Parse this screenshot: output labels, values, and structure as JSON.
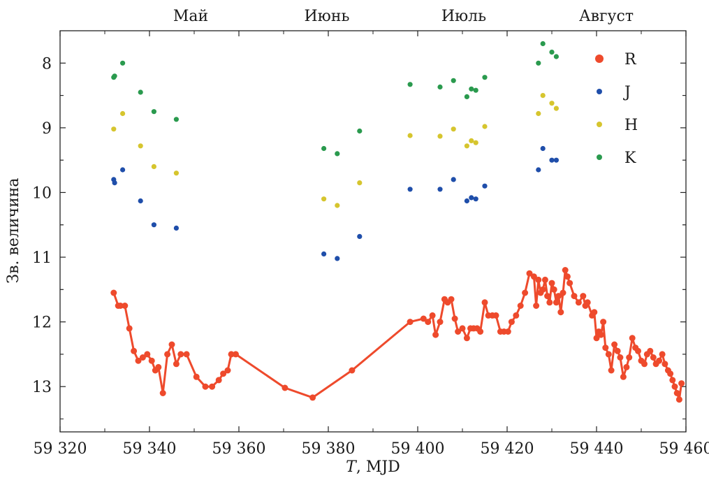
{
  "chart_data": {
    "type": "scatter",
    "xlabel_var": "T",
    "xlabel_unit": ", MJD",
    "ylabel": "Зв. величина",
    "xlim": [
      59320,
      59460
    ],
    "ylim": [
      13.7,
      7.5
    ],
    "y_inverted": true,
    "x_ticks": [
      59320,
      59340,
      59360,
      59380,
      59400,
      59420,
      59440,
      59460
    ],
    "x_tick_labels": [
      "59 320",
      "59 340",
      "59 360",
      "59 380",
      "59 400",
      "59 420",
      "59 440",
      "59 460"
    ],
    "y_ticks": [
      8,
      9,
      10,
      11,
      12,
      13
    ],
    "y_tick_labels": [
      "8",
      "9",
      "10",
      "11",
      "12",
      "13"
    ],
    "months": [
      {
        "label": "Май",
        "x": 59342
      },
      {
        "label": "Июнь",
        "x": 59372
      },
      {
        "label": "Июль",
        "x": 59403
      },
      {
        "label": "Август",
        "x": 59434
      }
    ],
    "legend_position": "top-right",
    "series": [
      {
        "name": "R",
        "color": "#ee4a2c",
        "marker": "line+dot",
        "x": [
          59332,
          59333,
          59333.5,
          59334.5,
          59335.5,
          59336.5,
          59337.5,
          59338.5,
          59339.5,
          59340.5,
          59341.3,
          59342,
          59343,
          59344,
          59345,
          59346,
          59347,
          59348.3,
          59350.5,
          59352.5,
          59354,
          59355.5,
          59356.5,
          59357.5,
          59358.3,
          59359.3,
          59370.3,
          59376.5,
          59385.3,
          59398.3,
          59401.3,
          59402.3,
          59403.3,
          59404,
          59405,
          59406,
          59406.7,
          59407.5,
          59408.3,
          59409,
          59410,
          59411,
          59411.8,
          59412.5,
          59413.3,
          59414,
          59415,
          59415.8,
          59416.7,
          59417.5,
          59418.5,
          59419.3,
          59420.2,
          59421,
          59422,
          59423,
          59424,
          59425,
          59426,
          59426.5,
          59427,
          59427.5,
          59428,
          59428.5,
          59429,
          59429.5,
          59430,
          59430.5,
          59431,
          59431.5,
          59432,
          59432.5,
          59433,
          59433.5,
          59434,
          59435,
          59436,
          59437,
          59437.5,
          59438,
          59439,
          59439.5,
          59440,
          59440.5,
          59441,
          59441.5,
          59442,
          59442.7,
          59443.3,
          59444,
          59444.7,
          59445.3,
          59446,
          59446.7,
          59447.3,
          59448,
          59448.7,
          59449.3,
          59450,
          59450.7,
          59451.3,
          59452,
          59452.7,
          59453.3,
          59454,
          59454.7,
          59455.3,
          59456,
          59456.5,
          59457,
          59457.5,
          59458,
          59458.5,
          59459
        ],
        "y": [
          11.55,
          11.75,
          11.75,
          11.75,
          12.1,
          12.45,
          12.6,
          12.55,
          12.5,
          12.6,
          12.75,
          12.7,
          13.1,
          12.5,
          12.35,
          12.65,
          12.5,
          12.5,
          12.85,
          13.0,
          13.0,
          12.9,
          12.8,
          12.75,
          12.5,
          12.5,
          13.02,
          13.17,
          12.75,
          12.0,
          11.95,
          12.0,
          11.9,
          12.2,
          12.0,
          11.65,
          11.7,
          11.65,
          11.95,
          12.15,
          12.1,
          12.25,
          12.1,
          12.1,
          12.1,
          12.15,
          11.7,
          11.9,
          11.9,
          11.9,
          12.15,
          12.15,
          12.15,
          12.0,
          11.9,
          11.75,
          11.55,
          11.25,
          11.3,
          11.75,
          11.35,
          11.55,
          11.5,
          11.35,
          11.6,
          11.7,
          11.4,
          11.5,
          11.7,
          11.6,
          11.85,
          11.55,
          11.2,
          11.3,
          11.4,
          11.6,
          11.7,
          11.6,
          11.75,
          11.7,
          11.9,
          11.85,
          12.25,
          12.15,
          12.2,
          12.0,
          12.4,
          12.5,
          12.75,
          12.35,
          12.45,
          12.55,
          12.85,
          12.7,
          12.55,
          12.25,
          12.4,
          12.45,
          12.6,
          12.65,
          12.5,
          12.45,
          12.55,
          12.65,
          12.6,
          12.5,
          12.65,
          12.75,
          12.8,
          12.9,
          13.0,
          13.1,
          13.2,
          12.95
        ]
      },
      {
        "name": "J",
        "color": "#1f4eaa",
        "marker": "dot",
        "x": [
          59332,
          59332.2,
          59334,
          59338,
          59341,
          59346,
          59379,
          59382,
          59387,
          59398.3,
          59405,
          59408,
          59411,
          59412,
          59413,
          59415,
          59427,
          59428,
          59430,
          59431
        ],
        "y": [
          9.8,
          9.85,
          9.65,
          10.13,
          10.5,
          10.55,
          10.95,
          11.02,
          10.68,
          9.95,
          9.95,
          9.8,
          10.13,
          10.08,
          10.1,
          9.9,
          9.65,
          9.32,
          9.5,
          9.5
        ]
      },
      {
        "name": "H",
        "color": "#d6c52e",
        "marker": "dot",
        "x": [
          59332,
          59334,
          59338,
          59341,
          59346,
          59379,
          59382,
          59387,
          59398.3,
          59405,
          59408,
          59411,
          59412,
          59413,
          59415,
          59427,
          59428,
          59430,
          59431
        ],
        "y": [
          9.02,
          8.78,
          9.28,
          9.6,
          9.7,
          10.1,
          10.2,
          9.85,
          9.12,
          9.13,
          9.02,
          9.28,
          9.2,
          9.23,
          8.98,
          8.78,
          8.5,
          8.62,
          8.7
        ]
      },
      {
        "name": "K",
        "color": "#2a9a4e",
        "marker": "dot",
        "x": [
          59332,
          59332.2,
          59334,
          59338,
          59341,
          59346,
          59379,
          59382,
          59387,
          59398.3,
          59405,
          59408,
          59411,
          59412,
          59413,
          59415,
          59427,
          59428,
          59430,
          59431
        ],
        "y": [
          8.22,
          8.2,
          8.0,
          8.45,
          8.75,
          8.87,
          9.32,
          9.4,
          9.05,
          8.33,
          8.37,
          8.27,
          8.52,
          8.4,
          8.42,
          8.22,
          8.0,
          7.7,
          7.83,
          7.9
        ]
      }
    ]
  }
}
